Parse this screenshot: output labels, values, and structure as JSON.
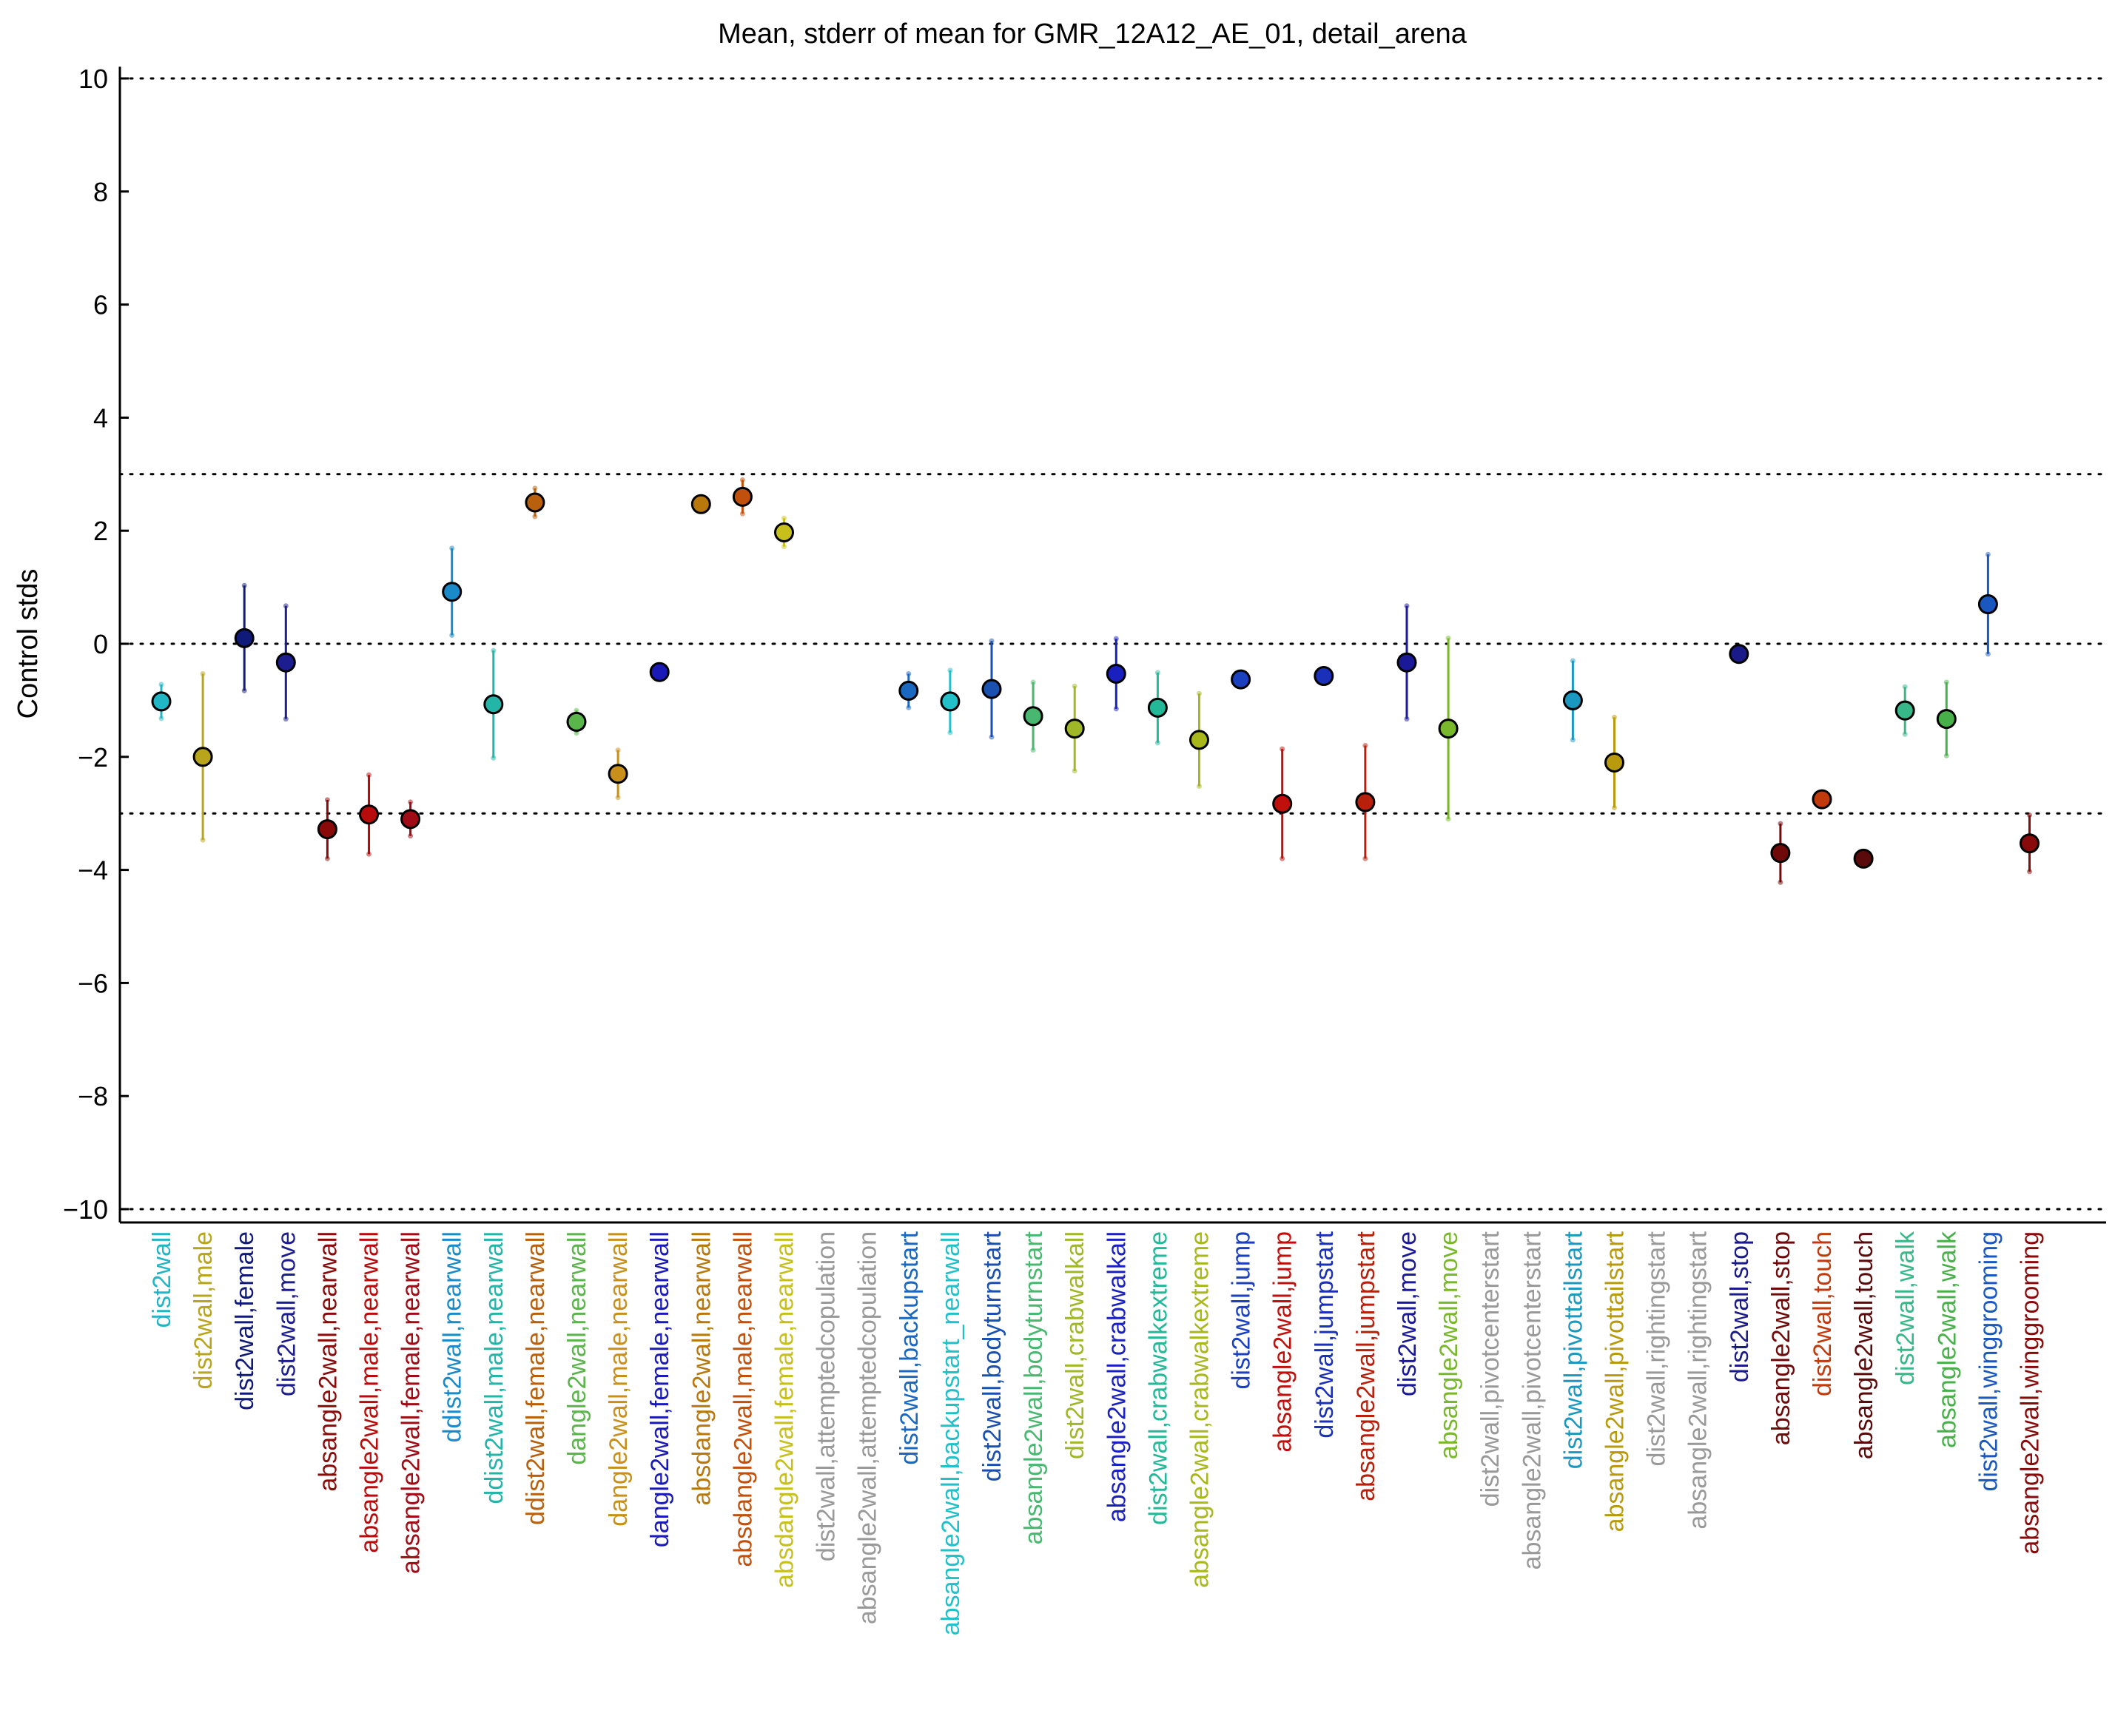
{
  "chart_data": {
    "type": "scatter",
    "title": "Mean, stderr of mean for GMR_12A12_AE_01, detail_arena",
    "ylabel": "Control stds",
    "xlabel": "",
    "ylim": [
      -10,
      10
    ],
    "yticks": [
      10,
      8,
      6,
      4,
      2,
      0,
      -2,
      -4,
      -6,
      -8,
      -10
    ],
    "ytick_labels": [
      "10",
      "8",
      "6",
      "4",
      "2",
      "0",
      "−2",
      "−4",
      "−6",
      "−8",
      "−10"
    ],
    "reference_lines": [
      10,
      3,
      0,
      -3,
      -10
    ],
    "grid": false,
    "points": [
      {
        "label": "dist2wall",
        "mean": -1.02,
        "err": 0.3,
        "color": "#22b5c5"
      },
      {
        "label": "dist2wall,male",
        "mean": -2.0,
        "err": 1.47,
        "color": "#b8a51c"
      },
      {
        "label": "dist2wall,female",
        "mean": 0.1,
        "err": 0.93,
        "color": "#101a78"
      },
      {
        "label": "dist2wall,move",
        "mean": -0.33,
        "err": 1.0,
        "color": "#1c1d8e"
      },
      {
        "label": "absangle2wall,nearwall",
        "mean": -3.28,
        "err": 0.52,
        "color": "#8a0a0a"
      },
      {
        "label": "absangle2wall,male,nearwall",
        "mean": -3.02,
        "err": 0.7,
        "color": "#b80c0c"
      },
      {
        "label": "absangle2wall,female,nearwall",
        "mean": -3.1,
        "err": 0.3,
        "color": "#a00c16"
      },
      {
        "label": "ddist2wall,nearwall",
        "mean": 0.92,
        "err": 0.77,
        "color": "#1a8ac8"
      },
      {
        "label": "ddist2wall,male,nearwall",
        "mean": -1.07,
        "err": 0.95,
        "color": "#22b5a8"
      },
      {
        "label": "ddist2wall,female,nearwall",
        "mean": 2.5,
        "err": 0.25,
        "color": "#b8600c"
      },
      {
        "label": "dangle2wall,nearwall",
        "mean": -1.38,
        "err": 0.2,
        "color": "#5ab54a"
      },
      {
        "label": "dangle2wall,male,nearwall",
        "mean": -2.3,
        "err": 0.42,
        "color": "#c8901a"
      },
      {
        "label": "dangle2wall,female,nearwall",
        "mean": -0.5,
        "err": 0.1,
        "color": "#1a1ab8"
      },
      {
        "label": "absdangle2wall,nearwall",
        "mean": 2.47,
        "err": 0.1,
        "color": "#b8780c"
      },
      {
        "label": "absdangle2wall,male,nearwall",
        "mean": 2.6,
        "err": 0.3,
        "color": "#c0500c"
      },
      {
        "label": "absdangle2wall,female,nearwall",
        "mean": 1.97,
        "err": 0.25,
        "color": "#c8c01a"
      },
      {
        "label": "dist2wall,attemptedcopulation",
        "mean": null,
        "err": null,
        "color": "#999999"
      },
      {
        "label": "absangle2wall,attemptedcopulation",
        "mean": null,
        "err": null,
        "color": "#999999"
      },
      {
        "label": "dist2wall,backupstart",
        "mean": -0.83,
        "err": 0.3,
        "color": "#1a68c0"
      },
      {
        "label": "absangle2wall,backupstart_nearwall",
        "mean": -1.02,
        "err": 0.55,
        "color": "#22c0c8"
      },
      {
        "label": "dist2wall,bodyturnstart",
        "mean": -0.8,
        "err": 0.85,
        "color": "#1a50b0"
      },
      {
        "label": "absangle2wall,bodyturnstart",
        "mean": -1.28,
        "err": 0.6,
        "color": "#48b870"
      },
      {
        "label": "dist2wall,crabwalkall",
        "mean": -1.5,
        "err": 0.75,
        "color": "#a0b828"
      },
      {
        "label": "absangle2wall,crabwalkall",
        "mean": -0.53,
        "err": 0.62,
        "color": "#1a20c0"
      },
      {
        "label": "dist2wall,crabwalkextreme",
        "mean": -1.13,
        "err": 0.62,
        "color": "#22b898"
      },
      {
        "label": "absangle2wall,crabwalkextreme",
        "mean": -1.7,
        "err": 0.82,
        "color": "#a8b81c"
      },
      {
        "label": "dist2wall,jump",
        "mean": -0.63,
        "err": 0.1,
        "color": "#1a40c0"
      },
      {
        "label": "absangle2wall,jump",
        "mean": -2.83,
        "err": 0.97,
        "color": "#c0100c"
      },
      {
        "label": "dist2wall,jumpstart",
        "mean": -0.57,
        "err": 0.1,
        "color": "#1a30b8"
      },
      {
        "label": "absangle2wall,jumpstart",
        "mean": -2.8,
        "err": 1.0,
        "color": "#b8200c"
      },
      {
        "label": "dist2wall,move",
        "mean": -0.33,
        "err": 1.0,
        "color": "#1a1a98"
      },
      {
        "label": "absangle2wall,move",
        "mean": -1.5,
        "err": 1.6,
        "color": "#78b82a"
      },
      {
        "label": "dist2wall,pivotcenterstart",
        "mean": null,
        "err": null,
        "color": "#999999"
      },
      {
        "label": "absangle2wall,pivotcenterstart",
        "mean": null,
        "err": null,
        "color": "#999999"
      },
      {
        "label": "dist2wall,pivottailstart",
        "mean": -1.0,
        "err": 0.7,
        "color": "#1a98c0"
      },
      {
        "label": "absangle2wall,pivottailstart",
        "mean": -2.1,
        "err": 0.8,
        "color": "#b89a0c"
      },
      {
        "label": "dist2wall,rightingstart",
        "mean": null,
        "err": null,
        "color": "#999999"
      },
      {
        "label": "absangle2wall,rightingstart",
        "mean": null,
        "err": null,
        "color": "#999999"
      },
      {
        "label": "dist2wall,stop",
        "mean": -0.18,
        "err": 0.1,
        "color": "#1a1a88"
      },
      {
        "label": "absangle2wall,stop",
        "mean": -3.7,
        "err": 0.52,
        "color": "#700a0a"
      },
      {
        "label": "dist2wall,touch",
        "mean": -2.75,
        "err": 0.08,
        "color": "#c03a0c"
      },
      {
        "label": "absangle2wall,touch",
        "mean": -3.8,
        "err": 0.08,
        "color": "#5a0a0a"
      },
      {
        "label": "dist2wall,walk",
        "mean": -1.18,
        "err": 0.42,
        "color": "#38b888"
      },
      {
        "label": "absangle2wall,walk",
        "mean": -1.33,
        "err": 0.65,
        "color": "#48b048"
      },
      {
        "label": "dist2wall,winggrooming",
        "mean": 0.7,
        "err": 0.88,
        "color": "#1a58c0"
      },
      {
        "label": "absangle2wall,winggrooming",
        "mean": -3.53,
        "err": 0.5,
        "color": "#880a0a"
      }
    ]
  }
}
